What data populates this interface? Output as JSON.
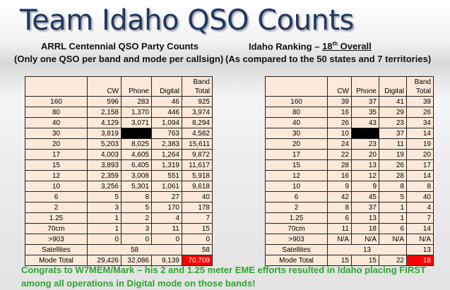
{
  "title": "Team Idaho QSO Counts",
  "left_heading": "ARRL Centennial QSO Party Counts",
  "left_subheading": "(Only one QSO per band and mode per callsign)",
  "right_heading_prefix": "Idaho Ranking – ",
  "right_heading_rank": "18",
  "right_heading_suffix": "th",
  "right_heading_overall": " Overall",
  "right_subheading": "(As compared to the 50 states and 7 territories)",
  "columns": [
    "",
    "CW",
    "Phone",
    "Digital",
    "Band\nTotal"
  ],
  "counts": [
    {
      "band": "160",
      "cw": "596",
      "phone": "283",
      "digital": "46",
      "total": "925"
    },
    {
      "band": "80",
      "cw": "2,158",
      "phone": "1,370",
      "digital": "446",
      "total": "3,974"
    },
    {
      "band": "40",
      "cw": "4,129",
      "phone": "3,071",
      "digital": "1,094",
      "total": "8,294"
    },
    {
      "band": "30",
      "cw": "3,819",
      "phone": "",
      "digital": "763",
      "total": "4,582",
      "phone_black": true
    },
    {
      "band": "20",
      "cw": "5,203",
      "phone": "8,025",
      "digital": "2,383",
      "total": "15,611"
    },
    {
      "band": "17",
      "cw": "4,003",
      "phone": "4,605",
      "digital": "1,264",
      "total": "9,872"
    },
    {
      "band": "15",
      "cw": "3,893",
      "phone": "6,405",
      "digital": "1,319",
      "total": "11,617"
    },
    {
      "band": "12",
      "cw": "2,359",
      "phone": "3,008",
      "digital": "551",
      "total": "5,918"
    },
    {
      "band": "10",
      "cw": "3,256",
      "phone": "5,301",
      "digital": "1,061",
      "total": "9,618"
    },
    {
      "band": "6",
      "cw": "5",
      "phone": "8",
      "digital": "27",
      "total": "40"
    },
    {
      "band": "2",
      "cw": "3",
      "phone": "5",
      "digital": "170",
      "total": "178"
    },
    {
      "band": "1.25",
      "cw": "1",
      "phone": "2",
      "digital": "4",
      "total": "7"
    },
    {
      "band": "70cm",
      "cw": "1",
      "phone": "3",
      "digital": "11",
      "total": "15"
    },
    {
      "band": ">903",
      "cw": "0",
      "phone": "0",
      "digital": "0",
      "total": "0"
    }
  ],
  "counts_satellites": {
    "label": "Satellites",
    "merged": "58",
    "total": "58"
  },
  "counts_mode_total": {
    "label": "Mode Total",
    "cw": "29,426",
    "phone": "32,086",
    "digital": "9,139",
    "total": "70,709"
  },
  "ranks": [
    {
      "band": "160",
      "cw": "39",
      "phone": "37",
      "digital": "41",
      "total": "39"
    },
    {
      "band": "80",
      "cw": "16",
      "phone": "35",
      "digital": "29",
      "total": "26"
    },
    {
      "band": "40",
      "cw": "26",
      "phone": "43",
      "digital": "23",
      "total": "34"
    },
    {
      "band": "30",
      "cw": "10",
      "phone": "",
      "digital": "37",
      "total": "14",
      "phone_black": true
    },
    {
      "band": "20",
      "cw": "24",
      "phone": "23",
      "digital": "11",
      "total": "19"
    },
    {
      "band": "17",
      "cw": "22",
      "phone": "20",
      "digital": "19",
      "total": "20"
    },
    {
      "band": "15",
      "cw": "28",
      "phone": "13",
      "digital": "26",
      "total": "17"
    },
    {
      "band": "12",
      "cw": "16",
      "phone": "12",
      "digital": "28",
      "total": "14"
    },
    {
      "band": "10",
      "cw": "9",
      "phone": "9",
      "digital": "8",
      "total": "8"
    },
    {
      "band": "6",
      "cw": "42",
      "phone": "45",
      "digital": "5",
      "total": "40"
    },
    {
      "band": "2",
      "cw": "8",
      "phone": "37",
      "digital": "1",
      "total": "4"
    },
    {
      "band": "1.25",
      "cw": "6",
      "phone": "13",
      "digital": "1",
      "total": "7"
    },
    {
      "band": "70cm",
      "cw": "11",
      "phone": "18",
      "digital": "6",
      "total": "14"
    },
    {
      "band": ">903",
      "cw": "N/A",
      "phone": "N/A",
      "digital": "N/A",
      "total": "N/A"
    }
  ],
  "ranks_satellites": {
    "label": "Satellites",
    "merged": "13",
    "total": "13"
  },
  "ranks_mode_total": {
    "label": "Mode Total",
    "cw": "15",
    "phone": "15",
    "digital": "22",
    "total": "18"
  },
  "congrats": "Congrats to W7MEM/Mark – his 2 and 1.25 meter EME efforts resulted in Idaho placing FIRST among all operations in Digital mode on those bands!",
  "colors": {
    "title": "#1f3864",
    "cell_bg": "#fde9d9",
    "highlight": "#ff0000",
    "congrats": "#2ea52e"
  }
}
